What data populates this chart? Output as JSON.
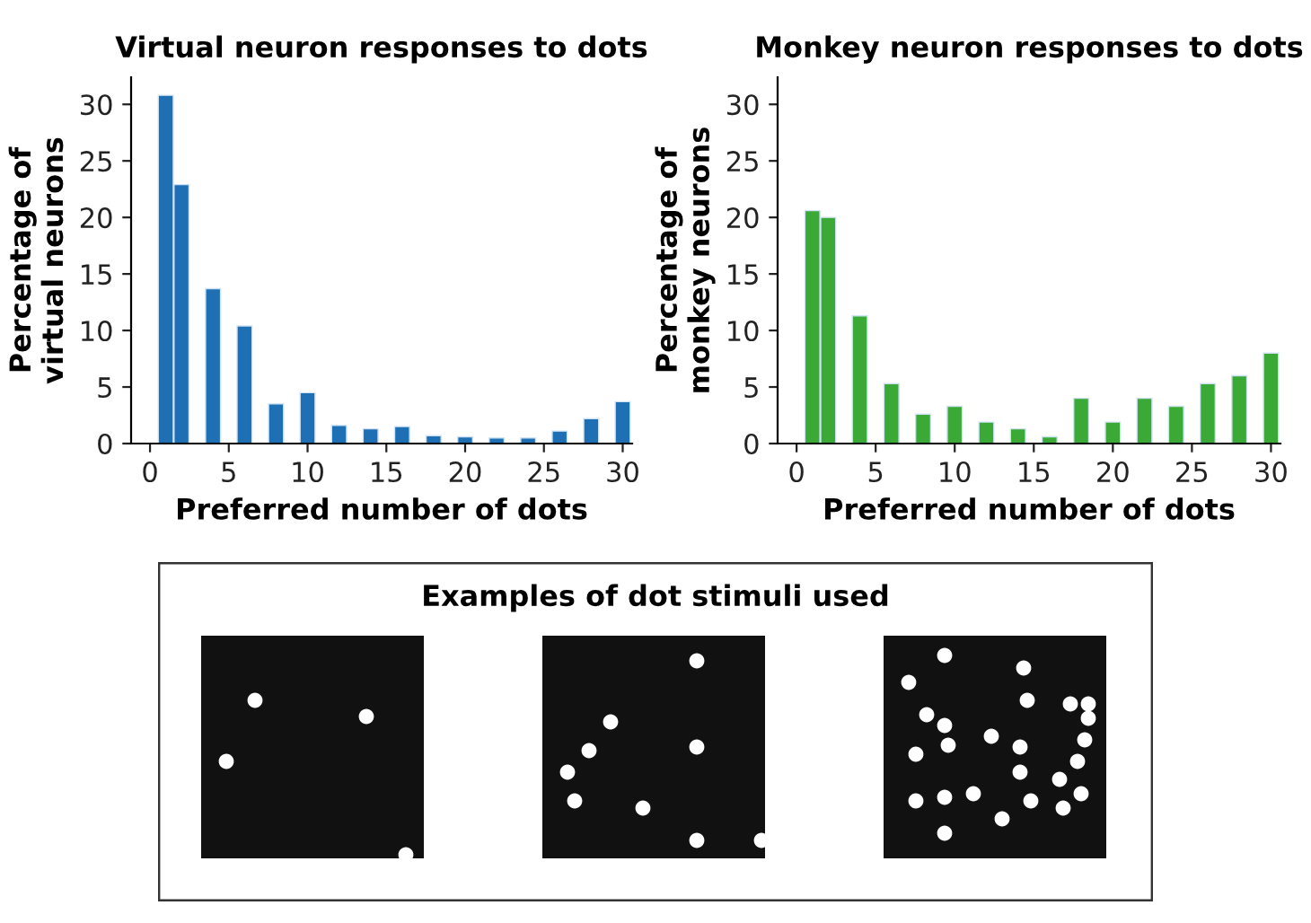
{
  "chart_data": [
    {
      "type": "bar",
      "title": "Virtual neuron responses to dots",
      "xlabel": "Preferred number of dots",
      "ylabel": "Percentage of\nvirtual neurons",
      "x": [
        1,
        2,
        4,
        6,
        8,
        10,
        12,
        14,
        16,
        18,
        20,
        22,
        24,
        26,
        28,
        30
      ],
      "values": [
        30.8,
        22.9,
        13.7,
        10.4,
        3.5,
        4.5,
        1.6,
        1.3,
        1.5,
        0.7,
        0.6,
        0.5,
        0.5,
        1.1,
        2.2,
        3.7
      ],
      "color": "#1f6fb4",
      "xlim": [
        -1.2,
        30.6
      ],
      "ylim": [
        0,
        32.4
      ],
      "xticks": [
        0,
        5,
        10,
        15,
        20,
        25,
        30
      ],
      "yticks": [
        0,
        5,
        10,
        15,
        20,
        25,
        30
      ],
      "grid": false,
      "legend": false
    },
    {
      "type": "bar",
      "title": "Monkey neuron responses to dots",
      "xlabel": "Preferred number of dots",
      "ylabel": "Percentage of\nmonkey neurons",
      "x": [
        1,
        2,
        4,
        6,
        8,
        10,
        12,
        14,
        16,
        18,
        20,
        22,
        24,
        26,
        28,
        30
      ],
      "values": [
        20.6,
        20.0,
        11.3,
        5.3,
        2.6,
        3.3,
        1.9,
        1.3,
        0.6,
        4.0,
        1.9,
        4.0,
        3.3,
        5.3,
        6.0,
        8.0
      ],
      "color": "#3aa935",
      "xlim": [
        -1.2,
        30.6
      ],
      "ylim": [
        0,
        32.4
      ],
      "xticks": [
        0,
        5,
        10,
        15,
        20,
        25,
        30
      ],
      "yticks": [
        0,
        5,
        10,
        15,
        20,
        25,
        30
      ],
      "grid": false,
      "legend": false
    },
    {
      "type": "other",
      "title": "Examples of dot stimuli used"
    }
  ]
}
